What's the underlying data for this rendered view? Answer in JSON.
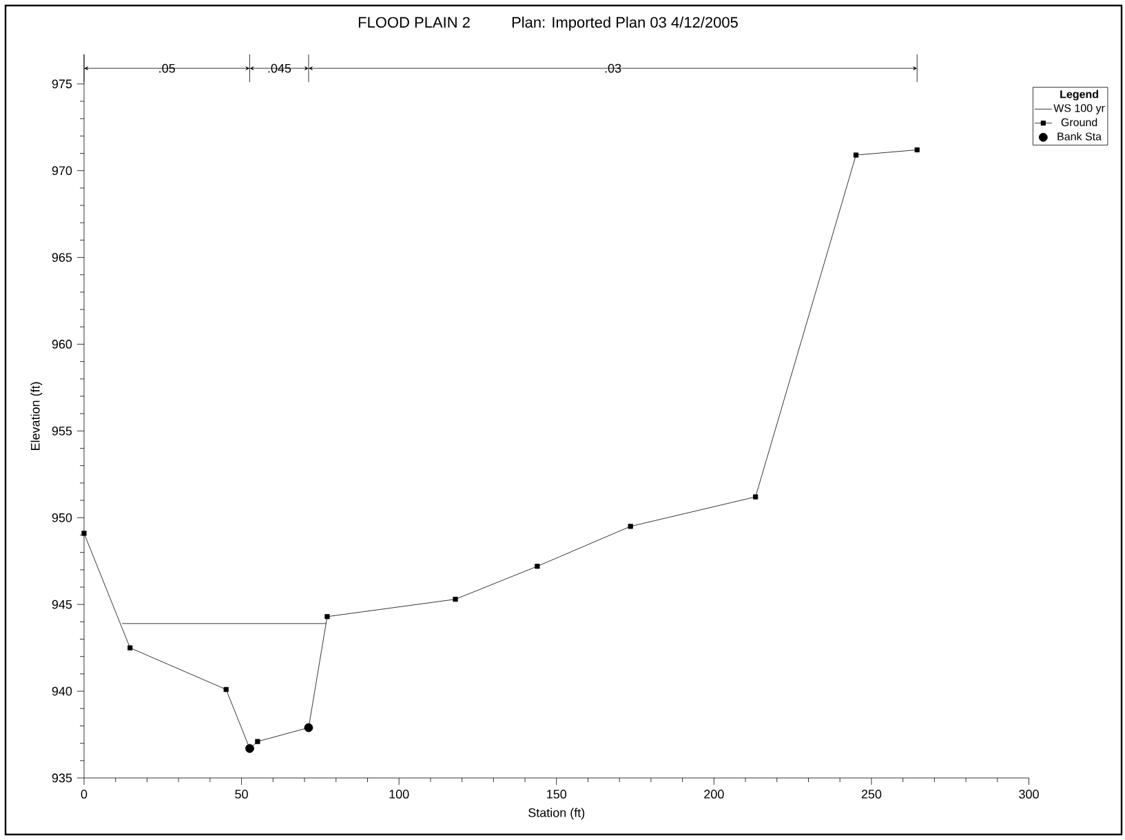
{
  "chart_data": {
    "type": "line",
    "title": "FLOOD PLAIN 2",
    "subtitle": "Plan: Imported Plan 03    4/12/2005",
    "xlabel": "Station (ft)",
    "ylabel": "Elevation (ft)",
    "legend_title": "Legend",
    "xlim": [
      0,
      300
    ],
    "ylim": [
      935,
      976.7
    ],
    "xticks": [
      0,
      50,
      100,
      150,
      200,
      250,
      300
    ],
    "yticks": [
      935,
      940,
      945,
      950,
      955,
      960,
      965,
      970,
      975
    ],
    "grid": false,
    "legend": "top right",
    "series": [
      {
        "name": "WS 100 yr",
        "color": "#000000",
        "marker": "none",
        "x": [
          12.1,
          76.9
        ],
        "values": [
          943.9,
          943.9
        ]
      },
      {
        "name": "Ground",
        "color": "#000000",
        "marker": "square",
        "x": [
          0,
          14.6,
          45.1,
          52.6,
          55.1,
          71.3,
          77.2,
          117.9,
          143.9,
          173.5,
          213.2,
          245.1,
          264.5
        ],
        "values": [
          949.1,
          942.5,
          940.1,
          936.7,
          937.1,
          937.9,
          944.3,
          945.3,
          947.2,
          949.5,
          951.2,
          970.9,
          971.2
        ]
      },
      {
        "name": "Bank Sta",
        "color": "#000000",
        "type": "scatter",
        "marker": "circle",
        "x": [
          52.6,
          71.3
        ],
        "values": [
          936.7,
          937.9
        ]
      }
    ],
    "annotations": [
      {
        "text": ".05",
        "x": 26.3,
        "y": 975.9
      },
      {
        "text": ".045",
        "x": 62,
        "y": 975.9
      },
      {
        "text": ".03",
        "x": 167.9,
        "y": 975.9
      }
    ]
  }
}
